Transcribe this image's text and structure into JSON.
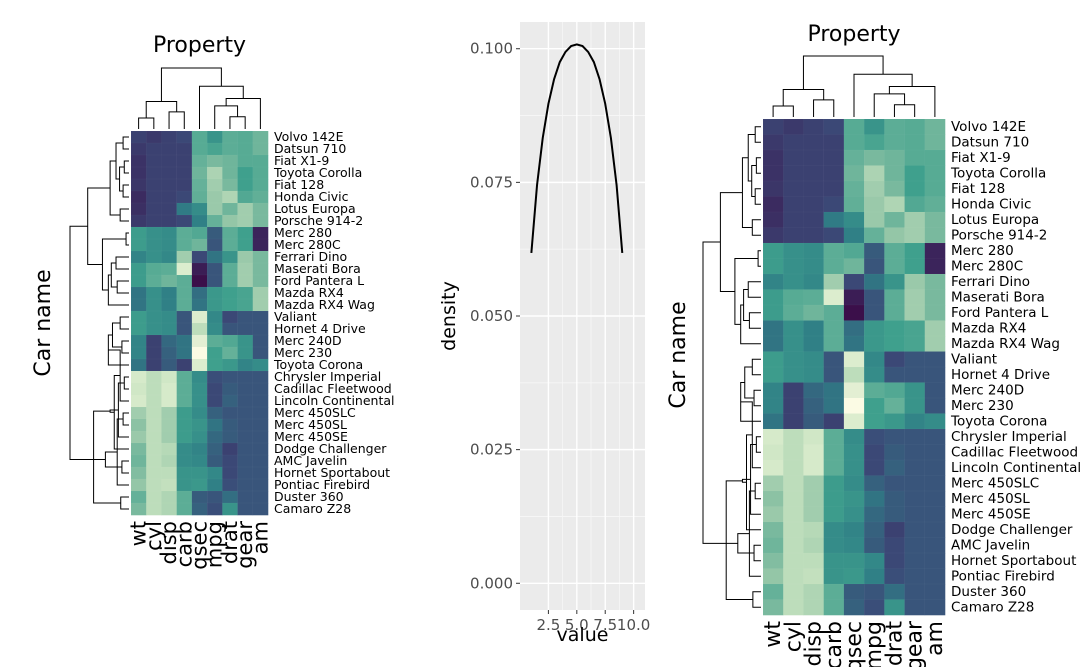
{
  "chart_data": [
    {
      "type": "heatmap",
      "title": "Property",
      "ylabel": "Car name",
      "columns": [
        "wt",
        "cyl",
        "disp",
        "carb",
        "qsec",
        "mpg",
        "drat",
        "gear",
        "am"
      ],
      "rows": [
        "Volvo 142E",
        "Datsun 710",
        "Fiat X1-9",
        "Toyota Corolla",
        "Fiat 128",
        "Honda Civic",
        "Lotus Europa",
        "Porsche 914-2",
        "Merc 280",
        "Merc 280C",
        "Ferrari Dino",
        "Maserati Bora",
        "Ford Pantera L",
        "Mazda RX4",
        "Mazda RX4 Wag",
        "Valiant",
        "Hornet 4 Drive",
        "Merc 240D",
        "Merc 230",
        "Toyota Corona",
        "Chrysler Imperial",
        "Cadillac Fleetwood",
        "Lincoln Continental",
        "Merc 450SLC",
        "Merc 450SL",
        "Merc 450SE",
        "Dodge Challenger",
        "AMC Javelin",
        "Hornet Sportabout",
        "Pontiac Firebird",
        "Duster 360",
        "Camaro Z28"
      ],
      "values": [
        [
          0.14,
          0.12,
          0.14,
          0.16,
          0.55,
          0.44,
          0.56,
          0.55,
          0.6
        ],
        [
          0.12,
          0.14,
          0.14,
          0.14,
          0.55,
          0.52,
          0.56,
          0.55,
          0.6
        ],
        [
          0.1,
          0.14,
          0.14,
          0.14,
          0.58,
          0.62,
          0.6,
          0.55,
          0.55
        ],
        [
          0.1,
          0.14,
          0.14,
          0.14,
          0.6,
          0.75,
          0.6,
          0.5,
          0.55
        ],
        [
          0.11,
          0.14,
          0.14,
          0.14,
          0.58,
          0.72,
          0.62,
          0.5,
          0.55
        ],
        [
          0.08,
          0.14,
          0.14,
          0.16,
          0.57,
          0.7,
          0.76,
          0.54,
          0.57
        ],
        [
          0.09,
          0.14,
          0.14,
          0.32,
          0.4,
          0.7,
          0.6,
          0.72,
          0.62
        ],
        [
          0.12,
          0.14,
          0.14,
          0.16,
          0.34,
          0.58,
          0.68,
          0.72,
          0.62
        ],
        [
          0.48,
          0.42,
          0.4,
          0.56,
          0.54,
          0.22,
          0.56,
          0.5,
          0.06
        ],
        [
          0.48,
          0.42,
          0.4,
          0.56,
          0.6,
          0.2,
          0.56,
          0.5,
          0.06
        ],
        [
          0.36,
          0.42,
          0.38,
          0.72,
          0.16,
          0.3,
          0.44,
          0.7,
          0.62
        ],
        [
          0.48,
          0.55,
          0.56,
          0.9,
          0.04,
          0.2,
          0.56,
          0.72,
          0.62
        ],
        [
          0.48,
          0.56,
          0.6,
          0.56,
          0.0,
          0.2,
          0.56,
          0.72,
          0.62
        ],
        [
          0.3,
          0.42,
          0.34,
          0.56,
          0.28,
          0.46,
          0.5,
          0.52,
          0.72
        ],
        [
          0.3,
          0.42,
          0.34,
          0.56,
          0.3,
          0.46,
          0.5,
          0.52,
          0.72
        ],
        [
          0.48,
          0.42,
          0.4,
          0.2,
          0.9,
          0.38,
          0.16,
          0.2,
          0.2
        ],
        [
          0.48,
          0.42,
          0.4,
          0.2,
          0.8,
          0.4,
          0.2,
          0.2,
          0.2
        ],
        [
          0.36,
          0.14,
          0.26,
          0.3,
          0.92,
          0.56,
          0.54,
          0.44,
          0.2
        ],
        [
          0.36,
          0.14,
          0.24,
          0.3,
          1.0,
          0.5,
          0.58,
          0.44,
          0.2
        ],
        [
          0.3,
          0.14,
          0.22,
          0.14,
          0.9,
          0.5,
          0.46,
          0.36,
          0.4
        ],
        [
          0.88,
          0.8,
          0.86,
          0.56,
          0.4,
          0.18,
          0.2,
          0.2,
          0.2
        ],
        [
          0.86,
          0.8,
          0.88,
          0.56,
          0.42,
          0.16,
          0.22,
          0.2,
          0.2
        ],
        [
          0.88,
          0.8,
          0.88,
          0.56,
          0.42,
          0.16,
          0.24,
          0.2,
          0.2
        ],
        [
          0.72,
          0.8,
          0.72,
          0.48,
          0.4,
          0.24,
          0.2,
          0.2,
          0.2
        ],
        [
          0.66,
          0.8,
          0.72,
          0.48,
          0.44,
          0.3,
          0.22,
          0.2,
          0.2
        ],
        [
          0.7,
          0.8,
          0.72,
          0.48,
          0.42,
          0.26,
          0.22,
          0.2,
          0.2
        ],
        [
          0.62,
          0.8,
          0.78,
          0.4,
          0.36,
          0.24,
          0.14,
          0.2,
          0.2
        ],
        [
          0.6,
          0.8,
          0.76,
          0.4,
          0.38,
          0.22,
          0.16,
          0.2,
          0.2
        ],
        [
          0.64,
          0.8,
          0.8,
          0.44,
          0.44,
          0.38,
          0.16,
          0.2,
          0.2
        ],
        [
          0.68,
          0.8,
          0.82,
          0.44,
          0.46,
          0.34,
          0.18,
          0.2,
          0.2
        ],
        [
          0.58,
          0.8,
          0.76,
          0.56,
          0.22,
          0.2,
          0.28,
          0.2,
          0.2
        ],
        [
          0.62,
          0.8,
          0.76,
          0.56,
          0.24,
          0.18,
          0.44,
          0.2,
          0.2
        ]
      ],
      "color_scale": [
        "#3b0f4a",
        "#3b4a78",
        "#2f7f86",
        "#3fa08d",
        "#8fc3a5",
        "#c8e3c0",
        "#fbfbe4"
      ],
      "dendrogram": {
        "rows": true,
        "columns": true
      }
    },
    {
      "type": "line",
      "xlabel": "value",
      "ylabel": "density",
      "x_ticks": [
        2.5,
        5.0,
        7.5,
        10.0
      ],
      "x_tick_labels": [
        "2.5",
        "5.0",
        "7.5",
        "10.0"
      ],
      "xlim": [
        0,
        11
      ],
      "y_ticks": [
        0.0,
        0.025,
        0.05,
        0.075,
        0.1
      ],
      "y_tick_labels": [
        "0.000",
        "0.025",
        "0.050",
        "0.075",
        "0.100"
      ],
      "ylim": [
        -0.005,
        0.105
      ],
      "series": [
        {
          "x": [
            1.0,
            1.5,
            2.0,
            2.5,
            3.0,
            3.5,
            4.0,
            4.5,
            5.0,
            5.5,
            6.0,
            6.5,
            7.0,
            7.5,
            8.0,
            8.5,
            9.0,
            9.5,
            10.0
          ],
          "y": [
            0.0618,
            0.0745,
            0.0833,
            0.0897,
            0.0943,
            0.0975,
            0.0994,
            0.1005,
            0.1008,
            0.1005,
            0.0994,
            0.0975,
            0.0943,
            0.0897,
            0.0833,
            0.0745,
            0.0618,
            0.0618,
            0.0618
          ],
          "color": "#000000"
        }
      ],
      "grid": true,
      "panel_color": "#ebebeb"
    },
    {
      "type": "heatmap",
      "title": "Property",
      "ylabel": "Car name",
      "reuse": "same data as first heatmap"
    }
  ]
}
